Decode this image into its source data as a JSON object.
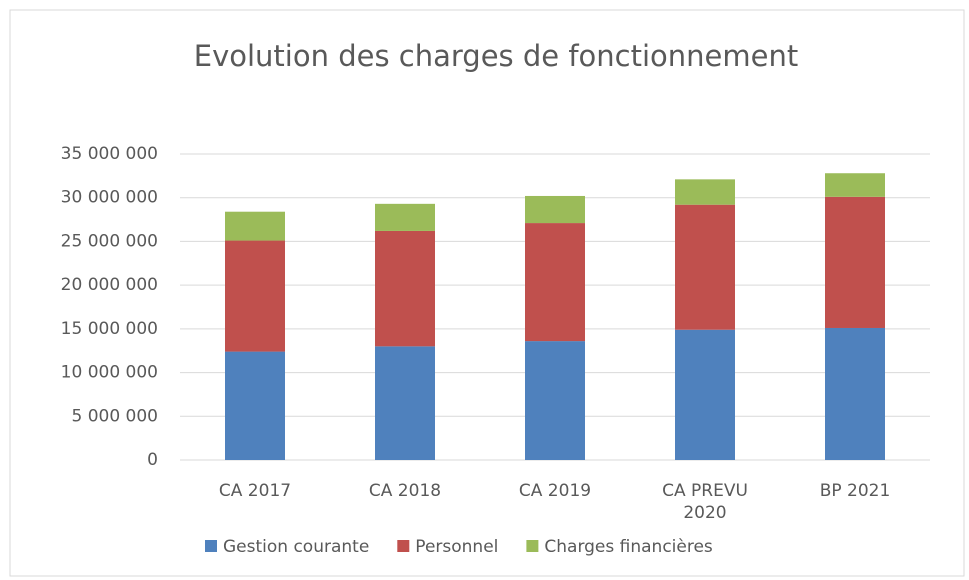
{
  "chart_data": {
    "type": "stacked_bar",
    "title": "Evolution des charges de fonctionnement",
    "categories": [
      "CA 2017",
      "CA 2018",
      "CA 2019",
      "CA PREVU 2020",
      "BP 2021"
    ],
    "series": [
      {
        "name": "Gestion courante",
        "color": "#4f81bd",
        "values": [
          12400000,
          13000000,
          13600000,
          14900000,
          15100000
        ]
      },
      {
        "name": "Personnel",
        "color": "#c0504d",
        "values": [
          12700000,
          13200000,
          13500000,
          14300000,
          15000000
        ]
      },
      {
        "name": "Charges financières",
        "color": "#9bbb59",
        "values": [
          3300000,
          3100000,
          3100000,
          2900000,
          2700000
        ]
      }
    ],
    "ylim": [
      0,
      35000000
    ],
    "yticks": [
      0,
      {
        "value": 5000000,
        "label": "5 000 000"
      },
      {
        "value": 10000000,
        "label": "10 000 000"
      },
      {
        "value": 15000000,
        "label": "15 000 000"
      },
      {
        "value": 20000000,
        "label": "20 000 000"
      },
      {
        "value": 25000000,
        "label": "25 000 000"
      },
      {
        "value": 30000000,
        "label": "30 000 000"
      },
      {
        "value": 35000000,
        "label": "35 000 000"
      }
    ],
    "grid": true,
    "legend": "bottom"
  }
}
